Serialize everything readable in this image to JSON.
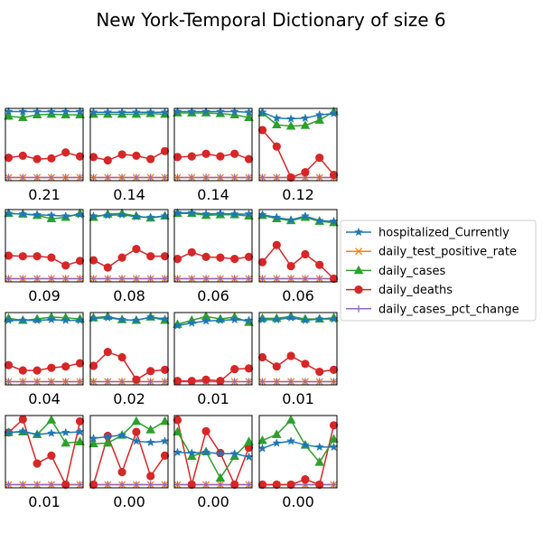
{
  "title": "New York-Temporal Dictionary of size 6",
  "chart_data": [
    {
      "type": "line",
      "label": "0.21",
      "x": [
        1,
        2,
        3,
        4,
        5,
        6
      ],
      "series": [
        {
          "name": "hospitalized_Currently",
          "values": [
            1.0,
            1.0,
            1.0,
            1.0,
            1.0,
            1.0
          ]
        },
        {
          "name": "daily_test_positive_rate",
          "values": [
            0,
            0,
            0,
            0,
            0,
            0
          ]
        },
        {
          "name": "daily_cases",
          "values": [
            0.93,
            0.91,
            0.95,
            0.96,
            0.95,
            0.95
          ]
        },
        {
          "name": "daily_deaths",
          "values": [
            0.3,
            0.33,
            0.28,
            0.29,
            0.38,
            0.32
          ]
        },
        {
          "name": "daily_cases_pct_change",
          "values": [
            0,
            0,
            0,
            0,
            0,
            0
          ]
        }
      ]
    },
    {
      "type": "line",
      "label": "0.14",
      "x": [
        1,
        2,
        3,
        4,
        5,
        6
      ],
      "series": [
        {
          "name": "hospitalized_Currently",
          "values": [
            0.99,
            0.99,
            0.99,
            0.99,
            0.99,
            0.99
          ]
        },
        {
          "name": "daily_test_positive_rate",
          "values": [
            0,
            0,
            0,
            0,
            0,
            0
          ]
        },
        {
          "name": "daily_cases",
          "values": [
            0.96,
            0.96,
            0.96,
            0.96,
            0.97,
            0.96
          ]
        },
        {
          "name": "daily_deaths",
          "values": [
            0.31,
            0.26,
            0.35,
            0.33,
            0.28,
            0.4
          ]
        },
        {
          "name": "daily_cases_pct_change",
          "values": [
            0,
            0,
            0,
            0,
            0,
            0
          ]
        }
      ]
    },
    {
      "type": "line",
      "label": "0.14",
      "x": [
        1,
        2,
        3,
        4,
        5,
        6
      ],
      "series": [
        {
          "name": "hospitalized_Currently",
          "values": [
            1.0,
            1.0,
            1.0,
            1.0,
            1.0,
            0.99
          ]
        },
        {
          "name": "daily_test_positive_rate",
          "values": [
            0,
            0,
            0,
            0,
            0,
            0
          ]
        },
        {
          "name": "daily_cases",
          "values": [
            0.98,
            0.98,
            0.98,
            0.97,
            0.95,
            0.91
          ]
        },
        {
          "name": "daily_deaths",
          "values": [
            0.31,
            0.32,
            0.36,
            0.32,
            0.36,
            0.28
          ]
        },
        {
          "name": "daily_cases_pct_change",
          "values": [
            0,
            0,
            0,
            0,
            0,
            0
          ]
        }
      ]
    },
    {
      "type": "line",
      "label": "0.12",
      "x": [
        1,
        2,
        3,
        4,
        5,
        6
      ],
      "series": [
        {
          "name": "hospitalized_Currently",
          "values": [
            0.99,
            0.9,
            0.89,
            0.9,
            0.95,
            0.97
          ]
        },
        {
          "name": "daily_test_positive_rate",
          "values": [
            0,
            0,
            0,
            0,
            0,
            0
          ]
        },
        {
          "name": "daily_cases",
          "values": [
            0.98,
            0.8,
            0.78,
            0.79,
            0.87,
            1.0
          ]
        },
        {
          "name": "daily_deaths",
          "values": [
            0.72,
            0.47,
            0.0,
            0.08,
            0.3,
            0.04
          ]
        },
        {
          "name": "daily_cases_pct_change",
          "values": [
            0,
            0,
            0,
            0,
            0,
            0
          ]
        }
      ]
    },
    {
      "type": "line",
      "label": "0.09",
      "x": [
        1,
        2,
        3,
        4,
        5,
        6
      ],
      "series": [
        {
          "name": "hospitalized_Currently",
          "values": [
            0.99,
            0.98,
            0.97,
            0.96,
            0.95,
            0.97
          ]
        },
        {
          "name": "daily_test_positive_rate",
          "values": [
            0,
            0,
            0,
            0,
            0,
            0
          ]
        },
        {
          "name": "daily_cases",
          "values": [
            0.99,
            0.98,
            0.96,
            0.91,
            0.93,
            0.99
          ]
        },
        {
          "name": "daily_deaths",
          "values": [
            0.35,
            0.34,
            0.34,
            0.32,
            0.2,
            0.27
          ]
        },
        {
          "name": "daily_cases_pct_change",
          "values": [
            0,
            0,
            0,
            0,
            0,
            0
          ]
        }
      ]
    },
    {
      "type": "line",
      "label": "0.08",
      "x": [
        1,
        2,
        3,
        4,
        5,
        6
      ],
      "series": [
        {
          "name": "hospitalized_Currently",
          "values": [
            0.95,
            0.96,
            0.97,
            0.94,
            0.93,
            0.95
          ]
        },
        {
          "name": "daily_test_positive_rate",
          "values": [
            0,
            0,
            0,
            0,
            0,
            0
          ]
        },
        {
          "name": "daily_cases",
          "values": [
            0.93,
            0.98,
            0.99,
            0.95,
            0.92,
            0.95
          ]
        },
        {
          "name": "daily_deaths",
          "values": [
            0.28,
            0.17,
            0.32,
            0.45,
            0.34,
            0.34
          ]
        },
        {
          "name": "daily_cases_pct_change",
          "values": [
            0,
            0,
            0,
            0,
            0,
            0
          ]
        }
      ]
    },
    {
      "type": "line",
      "label": "0.06",
      "x": [
        1,
        2,
        3,
        4,
        5,
        6
      ],
      "series": [
        {
          "name": "hospitalized_Currently",
          "values": [
            1.0,
            1.0,
            0.98,
            0.99,
            0.98,
            0.98
          ]
        },
        {
          "name": "daily_test_positive_rate",
          "values": [
            0,
            0,
            0,
            0,
            0,
            0
          ]
        },
        {
          "name": "daily_cases",
          "values": [
            0.99,
            0.99,
            0.96,
            0.97,
            0.97,
            0.95
          ]
        },
        {
          "name": "daily_deaths",
          "values": [
            0.3,
            0.4,
            0.33,
            0.32,
            0.3,
            0.33
          ]
        },
        {
          "name": "daily_cases_pct_change",
          "values": [
            0,
            0,
            0,
            0,
            0,
            0
          ]
        }
      ]
    },
    {
      "type": "line",
      "label": "0.06",
      "x": [
        1,
        2,
        3,
        4,
        5,
        6
      ],
      "series": [
        {
          "name": "hospitalized_Currently",
          "values": [
            0.97,
            0.93,
            0.89,
            0.95,
            0.88,
            0.87
          ]
        },
        {
          "name": "daily_test_positive_rate",
          "values": [
            0,
            0,
            0,
            0,
            0,
            0
          ]
        },
        {
          "name": "daily_cases",
          "values": [
            0.96,
            0.91,
            0.88,
            0.93,
            0.87,
            0.85
          ]
        },
        {
          "name": "daily_deaths",
          "values": [
            0.25,
            0.51,
            0.19,
            0.37,
            0.21,
            0.0
          ]
        },
        {
          "name": "daily_cases_pct_change",
          "values": [
            0,
            0,
            0,
            0,
            0,
            0
          ]
        }
      ]
    },
    {
      "type": "line",
      "label": "0.04",
      "x": [
        1,
        2,
        3,
        4,
        5,
        6
      ],
      "series": [
        {
          "name": "hospitalized_Currently",
          "values": [
            0.93,
            0.93,
            0.93,
            0.94,
            0.93,
            0.93
          ]
        },
        {
          "name": "daily_test_positive_rate",
          "values": [
            0,
            0,
            0,
            0,
            0,
            0
          ]
        },
        {
          "name": "daily_cases",
          "values": [
            0.96,
            0.93,
            0.95,
            0.98,
            0.97,
            0.95
          ]
        },
        {
          "name": "daily_deaths",
          "values": [
            0.25,
            0.17,
            0.17,
            0.21,
            0.23,
            0.28
          ]
        },
        {
          "name": "daily_cases_pct_change",
          "values": [
            0,
            0,
            0,
            0,
            0,
            0
          ]
        }
      ]
    },
    {
      "type": "line",
      "label": "0.02",
      "x": [
        1,
        2,
        3,
        4,
        5,
        6
      ],
      "series": [
        {
          "name": "hospitalized_Currently",
          "values": [
            0.96,
            0.97,
            0.94,
            0.93,
            0.98,
            0.95
          ]
        },
        {
          "name": "daily_test_positive_rate",
          "values": [
            0,
            0,
            0,
            0,
            0,
            0
          ]
        },
        {
          "name": "daily_cases",
          "values": [
            0.97,
            0.99,
            0.94,
            0.93,
            0.98,
            0.93
          ]
        },
        {
          "name": "daily_deaths",
          "values": [
            0.24,
            0.45,
            0.37,
            0.03,
            0.16,
            0.18
          ]
        },
        {
          "name": "daily_cases_pct_change",
          "values": [
            0,
            0,
            0,
            0,
            0,
            0
          ]
        }
      ]
    },
    {
      "type": "line",
      "label": "0.01",
      "x": [
        1,
        2,
        3,
        4,
        5,
        6
      ],
      "series": [
        {
          "name": "hospitalized_Currently",
          "values": [
            0.85,
            0.89,
            0.92,
            0.93,
            0.94,
            0.93
          ]
        },
        {
          "name": "daily_test_positive_rate",
          "values": [
            0,
            0,
            0,
            0,
            0,
            0
          ]
        },
        {
          "name": "daily_cases",
          "values": [
            0.87,
            0.93,
            0.99,
            0.95,
            0.98,
            0.9
          ]
        },
        {
          "name": "daily_deaths",
          "values": [
            0.01,
            0.01,
            0.03,
            0.01,
            0.19,
            0.2
          ]
        },
        {
          "name": "daily_cases_pct_change",
          "values": [
            0,
            0,
            0,
            0,
            0,
            0
          ]
        }
      ]
    },
    {
      "type": "line",
      "label": "0.01",
      "x": [
        1,
        2,
        3,
        4,
        5,
        6
      ],
      "series": [
        {
          "name": "hospitalized_Currently",
          "values": [
            0.94,
            0.94,
            0.97,
            0.93,
            0.95,
            0.95
          ]
        },
        {
          "name": "daily_test_positive_rate",
          "values": [
            0,
            0,
            0,
            0,
            0,
            0
          ]
        },
        {
          "name": "daily_cases",
          "values": [
            0.96,
            0.96,
            0.99,
            0.95,
            0.95,
            0.97
          ]
        },
        {
          "name": "daily_deaths",
          "values": [
            0.37,
            0.23,
            0.39,
            0.27,
            0.15,
            0.18
          ]
        },
        {
          "name": "daily_cases_pct_change",
          "values": [
            0,
            0,
            0,
            0,
            0,
            0
          ]
        }
      ]
    },
    {
      "type": "line",
      "label": "0.01",
      "x": [
        1,
        2,
        3,
        4,
        5,
        6
      ],
      "series": [
        {
          "name": "hospitalized_Currently",
          "values": [
            0.79,
            0.81,
            0.76,
            0.78,
            0.79,
            0.8
          ]
        },
        {
          "name": "daily_test_positive_rate",
          "values": [
            0,
            0,
            0,
            0,
            0,
            0
          ]
        },
        {
          "name": "daily_cases",
          "values": [
            0.79,
            0.8,
            0.76,
            0.98,
            0.63,
            0.65
          ]
        },
        {
          "name": "daily_deaths",
          "values": [
            0.79,
            0.99,
            0.32,
            0.44,
            0.0,
            0.96
          ]
        },
        {
          "name": "daily_cases_pct_change",
          "values": [
            0,
            0,
            0,
            0,
            0,
            0
          ]
        }
      ]
    },
    {
      "type": "line",
      "label": "0.00",
      "x": [
        1,
        2,
        3,
        4,
        5,
        6
      ],
      "series": [
        {
          "name": "hospitalized_Currently",
          "values": [
            0.7,
            0.73,
            0.75,
            0.66,
            0.64,
            0.66
          ]
        },
        {
          "name": "daily_test_positive_rate",
          "values": [
            0,
            0,
            0,
            0,
            0,
            0
          ]
        },
        {
          "name": "daily_cases",
          "values": [
            0.62,
            0.63,
            0.75,
            0.96,
            0.83,
            0.96
          ]
        },
        {
          "name": "daily_deaths",
          "values": [
            0.0,
            0.74,
            0.19,
            0.8,
            0.13,
            0.44
          ]
        },
        {
          "name": "daily_cases_pct_change",
          "values": [
            0,
            0,
            0,
            0,
            0,
            0
          ]
        }
      ]
    },
    {
      "type": "line",
      "label": "0.00",
      "x": [
        1,
        2,
        3,
        4,
        5,
        6
      ],
      "series": [
        {
          "name": "hospitalized_Currently",
          "values": [
            0.49,
            0.48,
            0.49,
            0.47,
            0.47,
            0.42
          ]
        },
        {
          "name": "daily_test_positive_rate",
          "values": [
            0,
            0,
            0,
            0,
            0,
            0
          ]
        },
        {
          "name": "daily_cases",
          "values": [
            0.8,
            0.43,
            0.5,
            0.1,
            0.43,
            0.65
          ]
        },
        {
          "name": "daily_deaths",
          "values": [
            0.98,
            0.0,
            0.81,
            0.48,
            0.0,
            0.56
          ]
        },
        {
          "name": "daily_cases_pct_change",
          "values": [
            0,
            0,
            0,
            0,
            0,
            0
          ]
        }
      ]
    },
    {
      "type": "line",
      "label": "0.00",
      "x": [
        1,
        2,
        3,
        4,
        5,
        6
      ],
      "series": [
        {
          "name": "hospitalized_Currently",
          "values": [
            0.55,
            0.63,
            0.66,
            0.6,
            0.57,
            0.57
          ]
        },
        {
          "name": "daily_test_positive_rate",
          "values": [
            0,
            0,
            0,
            0,
            0,
            0
          ]
        },
        {
          "name": "daily_cases",
          "values": [
            0.67,
            0.76,
            0.98,
            0.6,
            0.34,
            0.69
          ]
        },
        {
          "name": "daily_deaths",
          "values": [
            0.0,
            0.0,
            0.0,
            0.08,
            0.0,
            0.9
          ]
        },
        {
          "name": "daily_cases_pct_change",
          "values": [
            0,
            0,
            0,
            0,
            0,
            0
          ]
        }
      ]
    }
  ],
  "legend": {
    "placement": "right",
    "items": [
      {
        "label": "hospitalized_Currently",
        "color": "#1f77b4",
        "marker": "star"
      },
      {
        "label": "daily_test_positive_rate",
        "color": "#ff7f0e",
        "marker": "x"
      },
      {
        "label": "daily_cases",
        "color": "#2ca02c",
        "marker": "triangle"
      },
      {
        "label": "daily_deaths",
        "color": "#d62728",
        "marker": "circle"
      },
      {
        "label": "daily_cases_pct_change",
        "color": "#9467bd",
        "marker": "plus"
      }
    ]
  },
  "grid": false,
  "ylim": [
    0,
    1
  ]
}
